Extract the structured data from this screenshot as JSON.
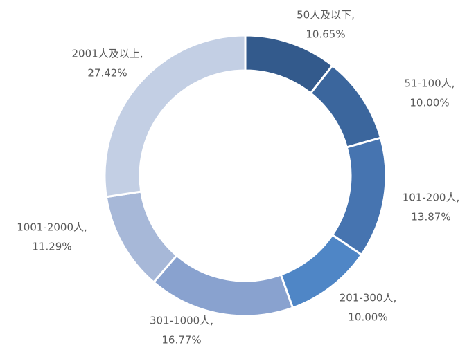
{
  "chart_data": {
    "type": "donut",
    "categories": [
      "50人及以下,",
      "51-100人,",
      "101-200人,",
      "201-300人,",
      "301-1000人,",
      "1001-2000人,",
      "2001人及以上,"
    ],
    "values": [
      10.65,
      10.0,
      13.87,
      10.0,
      16.77,
      11.29,
      27.42
    ],
    "value_labels": [
      "10.65%",
      "10.00%",
      "13.87%",
      "10.00%",
      "16.77%",
      "11.29%",
      "27.42%"
    ],
    "colors": [
      "#335a8c",
      "#3b669d",
      "#4674b0",
      "#4f86c6",
      "#89a2cf",
      "#a7b8d8",
      "#c3cfe4"
    ]
  }
}
